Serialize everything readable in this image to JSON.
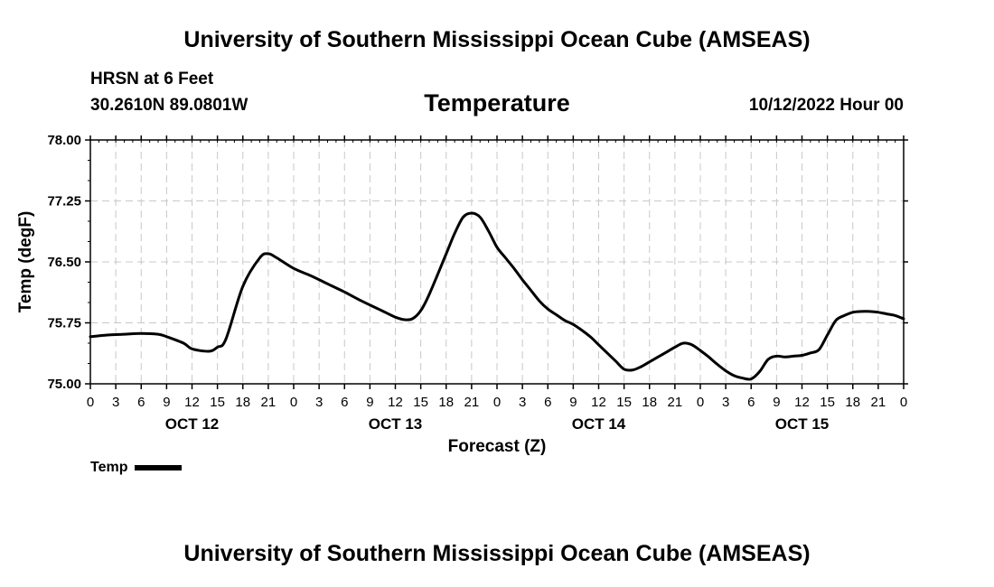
{
  "header": {
    "title": "University of Southern Mississippi Ocean Cube (AMSEAS)",
    "station": "HRSN at 6 Feet",
    "coords": "30.2610N  89.0801W",
    "variable": "Temperature",
    "datetime": "10/12/2022 Hour 00"
  },
  "footer": {
    "title": "University of Southern Mississippi Ocean Cube (AMSEAS)"
  },
  "legend": {
    "label": "Temp"
  },
  "colors": {
    "line": "#000000",
    "grid": "#c8c8c8",
    "background": "#ffffff"
  },
  "chart_data": {
    "type": "line",
    "title": "Temperature",
    "xlabel": "Forecast (Z)",
    "ylabel": "Temp (degF)",
    "xlim": [
      0,
      96
    ],
    "ylim": [
      75.0,
      78.0
    ],
    "yticks": [
      "75.00",
      "75.75",
      "76.50",
      "77.25",
      "78.00"
    ],
    "yticks_values": [
      75.0,
      75.75,
      76.5,
      77.25,
      78.0
    ],
    "xticks_labels": [
      "0",
      "3",
      "6",
      "9",
      "12",
      "15",
      "18",
      "21",
      "0",
      "3",
      "6",
      "9",
      "12",
      "15",
      "18",
      "21",
      "0",
      "3",
      "6",
      "9",
      "12",
      "15",
      "18",
      "21",
      "0",
      "3",
      "6",
      "9",
      "12",
      "15",
      "18",
      "21",
      "0"
    ],
    "day_labels": [
      {
        "label": "OCT 12",
        "hour": 12
      },
      {
        "label": "OCT 13",
        "hour": 36
      },
      {
        "label": "OCT 14",
        "hour": 60
      },
      {
        "label": "OCT 15",
        "hour": 84
      }
    ],
    "grid": true,
    "series": [
      {
        "name": "Temp",
        "x": [
          0,
          2,
          4,
          6,
          8,
          9,
          11,
          12,
          14,
          15,
          16,
          18,
          20,
          21,
          22,
          24,
          26,
          28,
          30,
          32,
          34,
          35,
          36,
          37,
          38,
          39,
          40,
          42,
          43,
          44,
          45,
          46,
          47,
          48,
          49,
          50,
          51,
          52,
          53,
          54,
          55,
          56,
          57,
          58,
          59,
          60,
          61,
          62,
          63,
          64,
          65,
          66,
          67,
          68,
          69,
          70,
          71,
          72,
          73,
          74,
          75,
          76,
          77,
          78,
          79,
          80,
          81,
          82,
          83,
          84,
          85,
          86,
          87,
          88,
          89,
          90,
          91,
          92,
          93,
          94,
          95,
          96
        ],
        "values": [
          75.58,
          75.6,
          75.61,
          75.62,
          75.61,
          75.58,
          75.5,
          75.43,
          75.4,
          75.45,
          75.55,
          76.2,
          76.55,
          76.6,
          76.55,
          76.42,
          76.33,
          76.23,
          76.13,
          76.02,
          75.92,
          75.87,
          75.82,
          75.79,
          75.8,
          75.9,
          76.1,
          76.6,
          76.85,
          77.05,
          77.1,
          77.05,
          76.88,
          76.68,
          76.55,
          76.42,
          76.28,
          76.15,
          76.02,
          75.92,
          75.85,
          75.78,
          75.73,
          75.66,
          75.58,
          75.48,
          75.38,
          75.28,
          75.18,
          75.17,
          75.21,
          75.27,
          75.33,
          75.39,
          75.45,
          75.5,
          75.48,
          75.41,
          75.33,
          75.24,
          75.16,
          75.1,
          75.07,
          75.06,
          75.15,
          75.3,
          75.34,
          75.33,
          75.34,
          75.35,
          75.38,
          75.42,
          75.6,
          75.78,
          75.84,
          75.88,
          75.89,
          75.89,
          75.88,
          75.86,
          75.84,
          75.8
        ]
      }
    ]
  }
}
